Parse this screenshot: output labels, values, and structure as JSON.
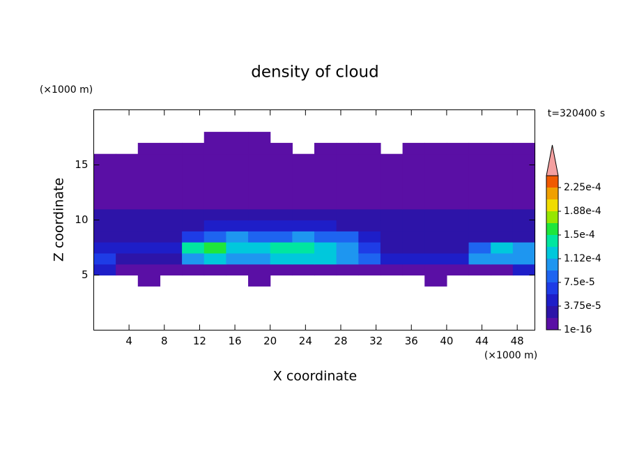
{
  "chart_data": {
    "type": "contour",
    "title": "density of cloud",
    "x_label": "X coordinate",
    "y_label": "Z coordinate",
    "x_unit": "(×1000 m)",
    "y_unit": "(×1000 m)",
    "annotation": "t=320400 s",
    "xlim": [
      0,
      50
    ],
    "ylim": [
      0,
      20
    ],
    "xticks": [
      4,
      8,
      12,
      16,
      20,
      24,
      28,
      32,
      36,
      40,
      44,
      48
    ],
    "yticks": [
      5,
      10,
      15
    ],
    "x": [
      1.25,
      3.75,
      6.25,
      8.75,
      11.25,
      13.75,
      16.25,
      18.75,
      21.25,
      23.75,
      26.25,
      28.75,
      31.25,
      33.75,
      36.25,
      38.75,
      41.25,
      43.75,
      46.25,
      48.75
    ],
    "y": [
      4.5,
      5.5,
      6.5,
      7.5,
      8.5,
      9.5,
      10.5,
      11.5,
      12.5,
      13.5,
      14.5,
      15.5,
      16.5,
      17.5
    ],
    "z": [
      [
        null,
        null,
        1e-05,
        null,
        null,
        null,
        null,
        1e-05,
        null,
        null,
        null,
        null,
        null,
        null,
        null,
        1e-05,
        null,
        null,
        null,
        null
      ],
      [
        5e-05,
        1e-05,
        1e-05,
        1e-05,
        1e-05,
        1e-05,
        1e-05,
        1e-05,
        1e-05,
        1e-05,
        1e-05,
        1e-05,
        1e-05,
        1e-05,
        1e-05,
        1e-05,
        1e-05,
        1e-05,
        1e-05,
        5e-05
      ],
      [
        6e-05,
        3e-05,
        3e-05,
        3e-05,
        0.00011,
        0.000115,
        0.000105,
        0.00011,
        0.000115,
        0.00012,
        0.000115,
        0.00011,
        9e-05,
        5e-05,
        5e-05,
        5e-05,
        5e-05,
        0.000105,
        0.000105,
        0.000105
      ],
      [
        4e-05,
        4e-05,
        4e-05,
        4e-05,
        0.000135,
        0.00015,
        0.00012,
        0.000115,
        0.000135,
        0.000145,
        0.00013,
        0.00011,
        7e-05,
        3.5e-05,
        3.5e-05,
        3.5e-05,
        3.5e-05,
        9e-05,
        0.000125,
        0.0001
      ],
      [
        3e-05,
        3e-05,
        3e-05,
        3e-05,
        7e-05,
        9e-05,
        0.0001,
        9e-05,
        9e-05,
        0.0001,
        9e-05,
        8e-05,
        5e-05,
        3e-05,
        3e-05,
        3e-05,
        3e-05,
        3e-05,
        3e-05,
        3e-05
      ],
      [
        2.5e-05,
        2.5e-05,
        2.5e-05,
        2.5e-05,
        2.5e-05,
        5e-05,
        5e-05,
        5e-05,
        5e-05,
        5e-05,
        5e-05,
        2.5e-05,
        2.5e-05,
        2.5e-05,
        2.5e-05,
        2.5e-05,
        2.5e-05,
        2.5e-05,
        2.5e-05,
        2.5e-05
      ],
      [
        2.2e-05,
        2.2e-05,
        2.2e-05,
        2.2e-05,
        2.2e-05,
        2.2e-05,
        2.2e-05,
        2.2e-05,
        2.2e-05,
        2.2e-05,
        2.2e-05,
        2.2e-05,
        2.2e-05,
        2.2e-05,
        2.2e-05,
        2.2e-05,
        2.2e-05,
        2.2e-05,
        2.2e-05,
        2.2e-05
      ],
      [
        1.2e-05,
        1.2e-05,
        1.2e-05,
        1.2e-05,
        1.2e-05,
        1.2e-05,
        1.2e-05,
        1.2e-05,
        1.2e-05,
        1.2e-05,
        1.2e-05,
        1.2e-05,
        1.2e-05,
        1.2e-05,
        1.2e-05,
        1.2e-05,
        1.2e-05,
        1.2e-05,
        1.2e-05,
        1.2e-05
      ],
      [
        8e-06,
        8e-06,
        8e-06,
        8e-06,
        8e-06,
        8e-06,
        8e-06,
        8e-06,
        8e-06,
        8e-06,
        8e-06,
        8e-06,
        8e-06,
        8e-06,
        8e-06,
        8e-06,
        8e-06,
        8e-06,
        8e-06,
        8e-06
      ],
      [
        8e-06,
        8e-06,
        8e-06,
        8e-06,
        8e-06,
        8e-06,
        8e-06,
        8e-06,
        8e-06,
        8e-06,
        8e-06,
        8e-06,
        8e-06,
        8e-06,
        8e-06,
        8e-06,
        8e-06,
        8e-06,
        8e-06,
        8e-06
      ],
      [
        8e-06,
        8e-06,
        8e-06,
        8e-06,
        8e-06,
        8e-06,
        8e-06,
        8e-06,
        8e-06,
        8e-06,
        8e-06,
        8e-06,
        8e-06,
        8e-06,
        8e-06,
        8e-06,
        8e-06,
        8e-06,
        8e-06,
        8e-06
      ],
      [
        8e-06,
        8e-06,
        8e-06,
        8e-06,
        8e-06,
        8e-06,
        8e-06,
        8e-06,
        8e-06,
        8e-06,
        8e-06,
        8e-06,
        8e-06,
        8e-06,
        8e-06,
        8e-06,
        8e-06,
        8e-06,
        8e-06,
        8e-06
      ],
      [
        null,
        null,
        8e-06,
        8e-06,
        8e-06,
        8e-06,
        8e-06,
        8e-06,
        8e-06,
        null,
        8e-06,
        8e-06,
        8e-06,
        null,
        8e-06,
        8e-06,
        8e-06,
        8e-06,
        8e-06,
        8e-06
      ],
      [
        null,
        null,
        null,
        null,
        null,
        8e-06,
        8e-06,
        8e-06,
        null,
        null,
        null,
        null,
        null,
        null,
        null,
        null,
        null,
        null,
        null,
        null
      ]
    ],
    "levels": [
      1e-16,
      1.875e-05,
      3.75e-05,
      5.625e-05,
      7.5e-05,
      9.375e-05,
      0.0001125,
      0.00013125,
      0.00015,
      0.00016875,
      0.0001875,
      0.00020625,
      0.000225,
      0.00024375
    ],
    "colors": [
      "#5a0fa5",
      "#2d14a8",
      "#1e1ec8",
      "#1e3ce6",
      "#1e64f0",
      "#1e96f0",
      "#00c8dc",
      "#00e6a0",
      "#1ee63c",
      "#96e600",
      "#f0dc00",
      "#f0a000",
      "#f05a00"
    ],
    "over_color": "#f4a0a0",
    "colorbar_ticks": [
      1e-16,
      {
        "value": 3.75e-05,
        "label": "3.75e-5"
      },
      {
        "value": 7.5e-05,
        "label": "7.5e-5"
      },
      {
        "value": 0.0001125,
        "label": "1.12e-4"
      },
      {
        "value": 0.00015,
        "label": "1.5e-4"
      },
      {
        "value": 0.0001875,
        "label": "1.88e-4"
      },
      {
        "value": 0.000225,
        "label": "2.25e-4"
      }
    ]
  }
}
